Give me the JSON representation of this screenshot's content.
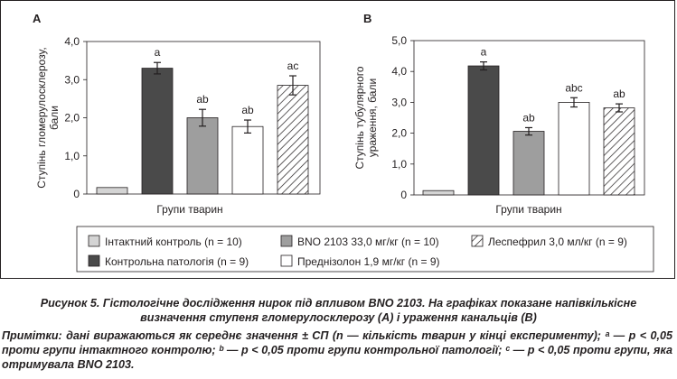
{
  "chart_data": [
    {
      "type": "bar",
      "panel_letter": "А",
      "ylabel": "Ступінь гломерулосклерозу, бали",
      "xlabel": "Групи тварин",
      "ylim": [
        0,
        4.0
      ],
      "y_ticks": [
        "4,0",
        "3,0",
        "2,0",
        "1,0",
        "0"
      ],
      "values": [
        0.17,
        3.3,
        2.0,
        1.77,
        2.85
      ],
      "errors": [
        0,
        0.15,
        0.22,
        0.17,
        0.25
      ],
      "annotations": [
        "",
        "a",
        "ab",
        "ab",
        "ac"
      ],
      "grid": false
    },
    {
      "type": "bar",
      "panel_letter": "B",
      "ylabel": "Ступінь тубулярного ураження, бали",
      "xlabel": "Групи тварин",
      "ylim": [
        0,
        5.0
      ],
      "y_ticks": [
        "5,0",
        "4,0",
        "3,0",
        "2,0",
        "1,0",
        "0"
      ],
      "values": [
        0.14,
        4.18,
        2.06,
        3.0,
        2.82
      ],
      "errors": [
        0,
        0.13,
        0.12,
        0.15,
        0.13
      ],
      "annotations": [
        "",
        "a",
        "ab",
        "abc",
        "ab"
      ],
      "grid": false
    }
  ],
  "legend": {
    "placement": "bottom",
    "items": [
      {
        "label": "Інтактний контроль (n = 10)",
        "color": "#d4d4d4",
        "pattern": "solid"
      },
      {
        "label": "Контрольна патологія (n = 9)",
        "color": "#4a4a4a",
        "pattern": "solid"
      },
      {
        "label": "BNO 2103 33,0 мг/кг (n = 10)",
        "color": "#9e9e9e",
        "pattern": "solid"
      },
      {
        "label": "Преднізолон 1,9 мг/кг (n = 9)",
        "color": "#ffffff",
        "pattern": "solid"
      },
      {
        "label": "Леспефрил 3,0 мл/кг (n = 9)",
        "color": "#ffffff",
        "pattern": "hatch"
      }
    ]
  },
  "caption": {
    "title_line1": "Рисунок 5. Гістологічне дослідження нирок під впливом BNO 2103. На графіках показане напівкількісне",
    "title_line2": "визначення ступеня гломерулосклерозу (А) і ураження канальців (В)",
    "note": "Примітки: дані виражаються як середнє значення ± СП (n — кількість тварин у кінці експерименту); ᵃ — p < 0,05 проти групи інтактного контролю; ᵇ — p < 0,05 проти групи контрольної патології; ᶜ — p < 0,05 проти групи, яка отримувала BNO 2103."
  }
}
